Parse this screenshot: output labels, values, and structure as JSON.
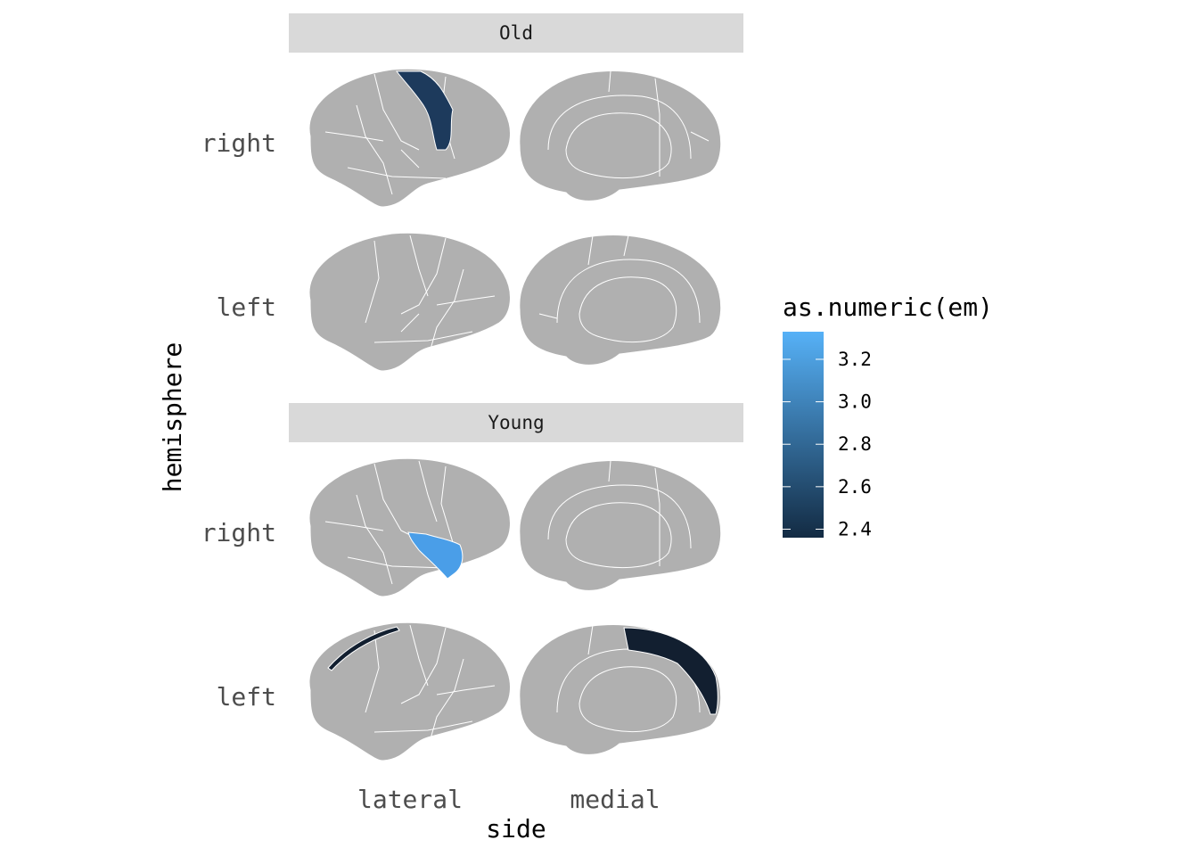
{
  "chart_data": {
    "type": "brain-atlas",
    "facets": [
      {
        "group": "Old",
        "rows": [
          {
            "hemisphere": "right",
            "highlights": [
              {
                "side": "lateral",
                "region": "precentral",
                "value": 2.55
              }
            ]
          },
          {
            "hemisphere": "left",
            "highlights": []
          }
        ]
      },
      {
        "group": "Young",
        "rows": [
          {
            "hemisphere": "right",
            "highlights": [
              {
                "side": "lateral",
                "region": "supramarginal",
                "value": 3.3
              }
            ]
          },
          {
            "hemisphere": "left",
            "highlights": [
              {
                "side": "lateral",
                "region": "superiorfrontal",
                "value": 2.4
              },
              {
                "side": "medial",
                "region": "superiorfrontal",
                "value": 2.4
              }
            ]
          }
        ]
      }
    ],
    "columns": [
      "lateral",
      "medial"
    ],
    "xlabel": "side",
    "ylabel": "hemisphere",
    "na_color": "#b0b0b0",
    "legend": {
      "title": "as.numeric(em)",
      "position": "right",
      "range": [
        2.36,
        3.33
      ],
      "ticks": [
        "3.2",
        "3.0",
        "2.8",
        "2.6",
        "2.4"
      ],
      "tick_values": [
        3.2,
        3.0,
        2.8,
        2.6,
        2.4
      ],
      "low_color": "#132b43",
      "high_color": "#56b1f7"
    }
  }
}
